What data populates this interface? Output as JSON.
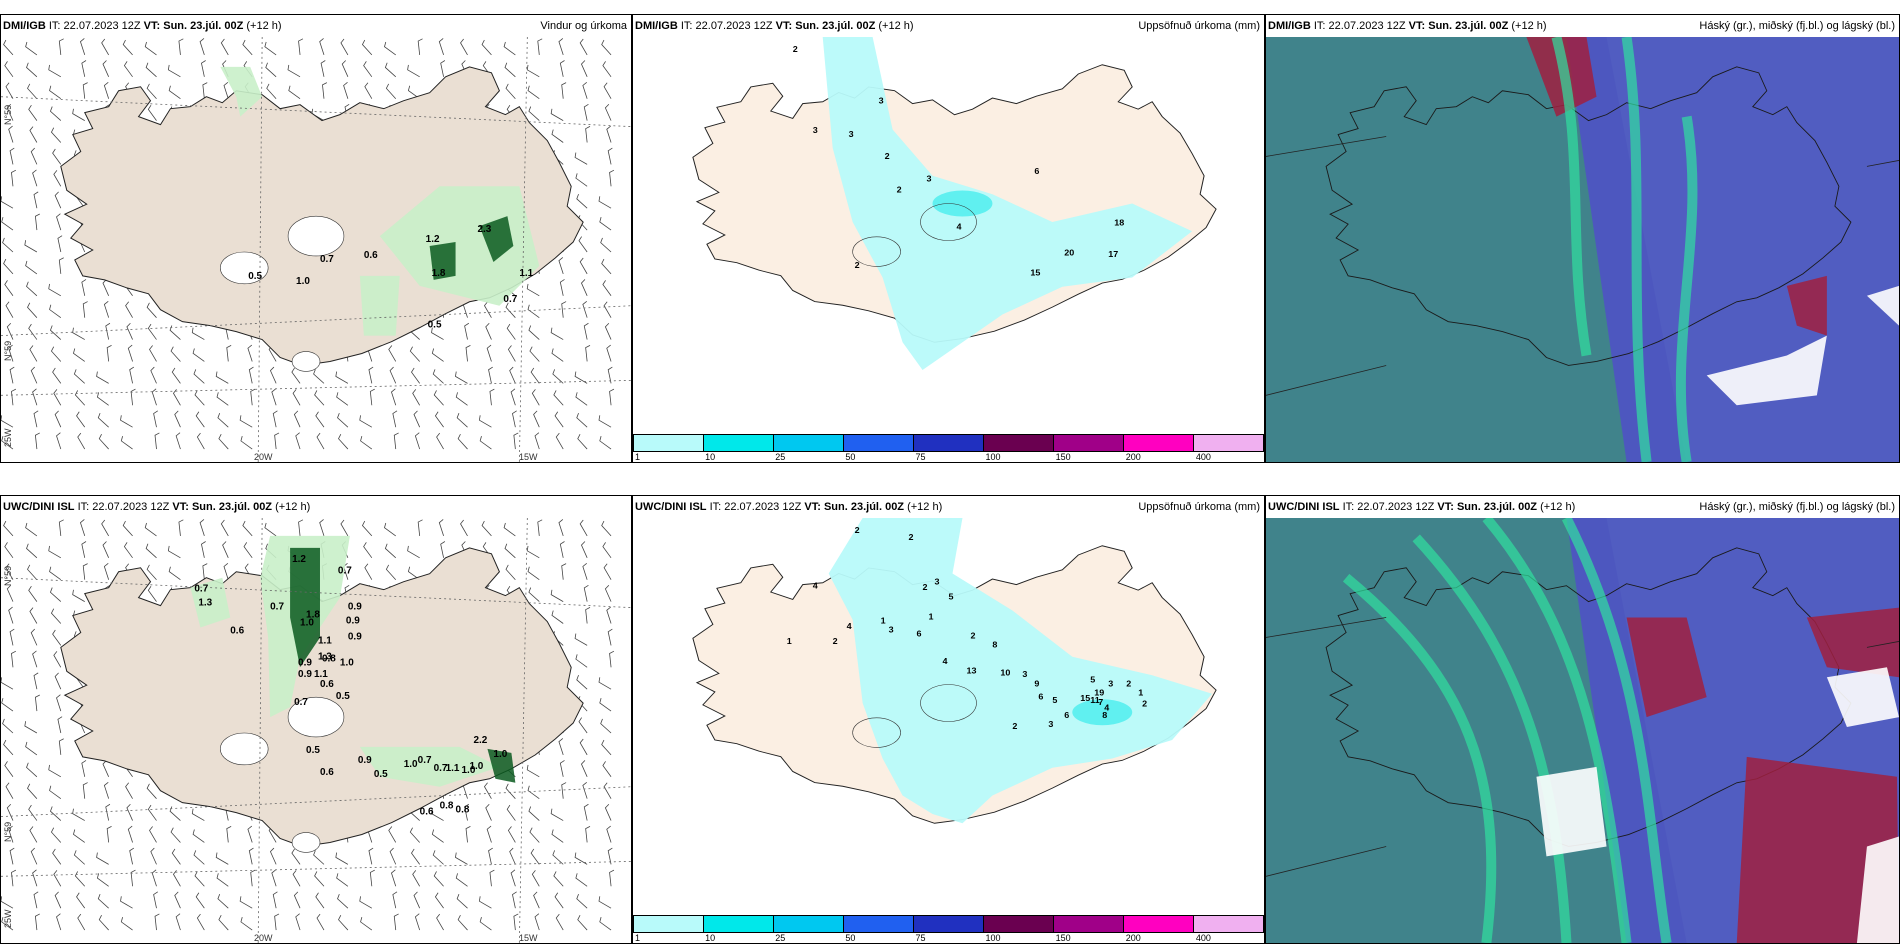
{
  "panels": [
    {
      "model": "DMI/IGB",
      "it_label": "IT:",
      "it_value": "22.07.2023 12Z",
      "vt_label": "VT:",
      "vt_value": "Sun. 23.júl. 00Z",
      "lead": "(+12 h)",
      "title": "Vindur og úrkoma",
      "kind": "wind",
      "lat_labels": [
        "N°59",
        "N°59"
      ],
      "lon_labels": [
        "20W",
        "15W"
      ],
      "lon_side": "25W",
      "numbers": [
        "0.5",
        "1.0",
        "0.7",
        "0.6",
        "1.2",
        "1.8",
        "2.3",
        "1.1",
        "0.7",
        "0.5"
      ]
    },
    {
      "model": "DMI/IGB",
      "it_label": "IT:",
      "it_value": "22.07.2023 12Z",
      "vt_label": "VT:",
      "vt_value": "Sun. 23.júl. 00Z",
      "lead": "(+12 h)",
      "title": "Uppsöfnuð úrkoma (mm)",
      "kind": "accum",
      "numbers": [
        "2",
        "3",
        "3",
        "3",
        "2",
        "3",
        "2",
        "4",
        "6",
        "18",
        "20",
        "17",
        "15",
        "2"
      ]
    },
    {
      "model": "DMI/IGB",
      "it_label": "IT:",
      "it_value": "22.07.2023 12Z",
      "vt_label": "VT:",
      "vt_value": "Sun. 23.júl. 00Z",
      "lead": "(+12 h)",
      "title": "Háský (gr.), miðský (fj.bl.) og lágský (bl.)",
      "kind": "cloud"
    },
    {
      "model": "UWC/DINI ISL",
      "it_label": "IT:",
      "it_value": "22.07.2023 12Z",
      "vt_label": "VT:",
      "vt_value": "Sun. 23.júl. 00Z",
      "lead": "(+12 h)",
      "title": "",
      "kind": "wind",
      "lat_labels": [
        "N°59",
        "N°59"
      ],
      "lon_labels": [
        "20W",
        "15W"
      ],
      "lon_side": "25W",
      "numbers": [
        "1.2",
        "0.7",
        "0.7",
        "1.3",
        "0.6",
        "0.7",
        "1.8",
        "0.9",
        "0.9",
        "0.9",
        "1.0",
        "1.1",
        "1.3",
        "0.9",
        "1.0",
        "0.9",
        "0.8",
        "1.1",
        "0.6",
        "0.7",
        "0.5",
        "0.5",
        "0.6",
        "0.9",
        "0.5",
        "1.0",
        "0.7",
        "0.7",
        "1.1",
        "1.0",
        "1.0",
        "2.2",
        "1.0",
        "0.6",
        "0.8",
        "0.8"
      ]
    },
    {
      "model": "UWC/DINI ISL",
      "it_label": "IT:",
      "it_value": "22.07.2023 12Z",
      "vt_label": "VT:",
      "vt_value": "Sun. 23.júl. 00Z",
      "lead": "(+12 h)",
      "title": "Uppsöfnuð úrkoma (mm)",
      "kind": "accum",
      "numbers": [
        "2",
        "2",
        "3",
        "4",
        "2",
        "5",
        "1",
        "1",
        "4",
        "3",
        "2",
        "1",
        "6",
        "2",
        "4",
        "8",
        "13",
        "10",
        "3",
        "9",
        "6",
        "5",
        "15",
        "19",
        "8",
        "11",
        "7",
        "2",
        "1",
        "2",
        "3",
        "5",
        "4",
        "3",
        "2",
        "6"
      ]
    },
    {
      "model": "UWC/DINI ISL",
      "it_label": "IT:",
      "it_value": "22.07.2023 12Z",
      "vt_label": "VT:",
      "vt_value": "Sun. 23.júl. 00Z",
      "lead": "(+12 h)",
      "title": "Háský (gr.), miðský (fj.bl.) og lágský (bl.)",
      "kind": "cloud"
    }
  ],
  "colorbar": {
    "labels": [
      "1",
      "10",
      "25",
      "50",
      "75",
      "100",
      "150",
      "200",
      "400"
    ],
    "colors": [
      "#b8fafa",
      "#00e8ea",
      "#00c8f0",
      "#2060f0",
      "#2030c0",
      "#6a0050",
      "#a00088",
      "#ff00c0",
      "#f0b0f0"
    ]
  },
  "colors": {
    "land": "#eadfd3",
    "land_accum": "#fbefe3",
    "accum_light": "#b8fafa",
    "accum_mid": "#60f0f0",
    "precip_light": "#c9f0c9",
    "precip_mid": "#6ccc6c",
    "precip_dark": "#0a5a20",
    "cloud_bg": "#5aa598",
    "cloud_mid": "#3a7a88",
    "cloud_blue": "#5050c8",
    "cloud_red": "#a02040",
    "cloud_green": "#30e0a0",
    "cloud_white": "#ffffff"
  }
}
